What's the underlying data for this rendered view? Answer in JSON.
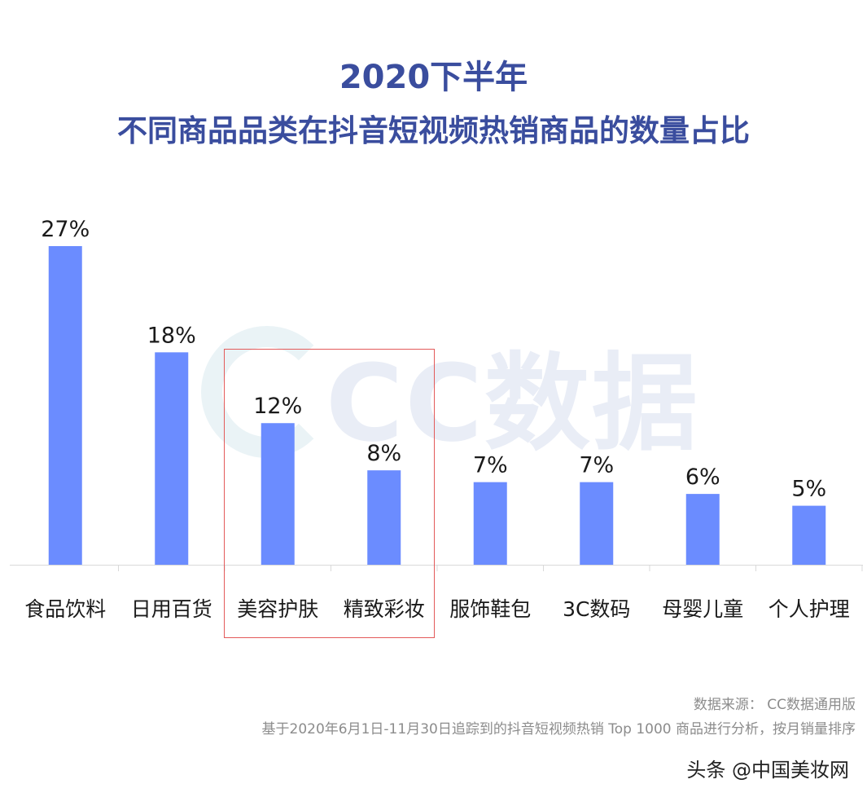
{
  "title_line1": "2020下半年",
  "title_line2": "不同商品品类在抖音短视频热销商品的数量占比",
  "watermark": "CC数据",
  "source_line1": "数据来源： CC数据通用版",
  "source_line2": "基于2020年6月1日-11月30日追踪到的抖音短视频热销 Top 1000 商品进行分析，按月销量排序",
  "footer": "头条 @中国美妆网",
  "colors": {
    "bar": "#6b8cff",
    "title": "#3a4d9e",
    "highlight": "#e35a5a"
  },
  "chart_data": {
    "type": "bar",
    "categories": [
      "食品饮料",
      "日用百货",
      "美容护肤",
      "精致彩妆",
      "服饰鞋包",
      "3C数码",
      "母婴儿童",
      "个人护理"
    ],
    "values": [
      27,
      18,
      12,
      8,
      7,
      7,
      6,
      5
    ],
    "value_labels": [
      "27%",
      "18%",
      "12%",
      "8%",
      "7%",
      "7%",
      "6%",
      "5%"
    ],
    "highlighted_categories": [
      "美容护肤",
      "精致彩妆"
    ],
    "unit": "%",
    "grid": false
  }
}
